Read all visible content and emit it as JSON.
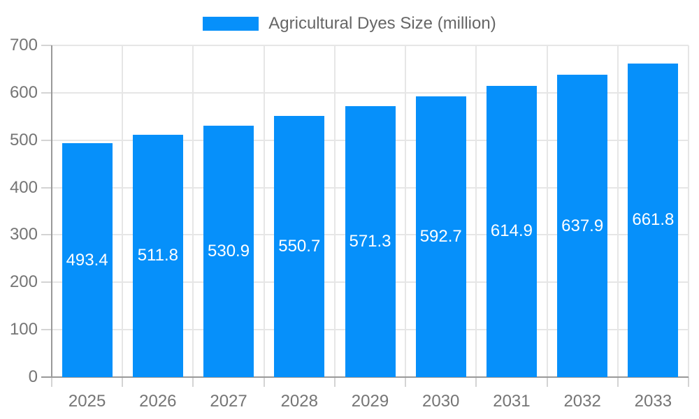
{
  "legend": {
    "label": "Agricultural Dyes Size (million)"
  },
  "chart_data": {
    "type": "bar",
    "title": "",
    "xlabel": "",
    "ylabel": "",
    "categories": [
      "2025",
      "2026",
      "2027",
      "2028",
      "2029",
      "2030",
      "2031",
      "2032",
      "2033"
    ],
    "series": [
      {
        "name": "Agricultural Dyes Size (million)",
        "values": [
          493.4,
          511.8,
          530.9,
          550.7,
          571.3,
          592.7,
          614.9,
          637.9,
          661.8
        ],
        "color": "#0690fa"
      }
    ],
    "ylim": [
      0,
      700
    ],
    "yticks": [
      0,
      100,
      200,
      300,
      400,
      500,
      600,
      700
    ],
    "grid": true,
    "legend_position": "top",
    "value_label_color": "#ffffff",
    "axis_line_color": "#999999",
    "gridline_color": "#e6e6e6",
    "tick_color": "#d4d4d4",
    "tick_label_color": "#757575",
    "background_color": "#ffffff"
  }
}
